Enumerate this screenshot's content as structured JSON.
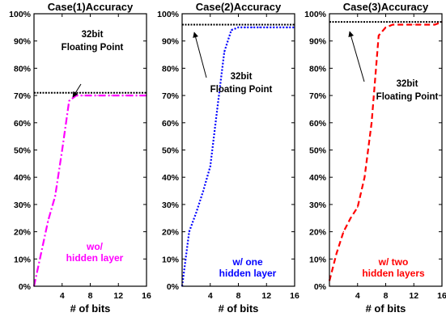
{
  "chart_data": [
    {
      "type": "line",
      "title": "Case(1)Accuracy",
      "xlabel": "# of bits",
      "ylabel": "",
      "xlim": [
        0,
        16
      ],
      "ylim": [
        0,
        100
      ],
      "xticks": [
        4,
        8,
        12,
        16
      ],
      "xtick_labels": [
        "4",
        "8",
        "12",
        "16"
      ],
      "yticks": [
        0,
        10,
        20,
        30,
        40,
        50,
        60,
        70,
        80,
        90,
        100
      ],
      "ytick_labels": [
        "0%",
        "10%",
        "20%",
        "30%",
        "40%",
        "50%",
        "60%",
        "70%",
        "80%",
        "90%",
        "100%"
      ],
      "reference_line": {
        "y": 71,
        "label_lines": [
          "32bit",
          "Floating Point"
        ]
      },
      "annotation_arrow": "Floating Point label points to reference line",
      "series": [
        {
          "label_lines": [
            "wo/",
            "hidden layer"
          ],
          "color": "#ff00ff",
          "style": "dash-dot",
          "x": [
            0,
            1,
            2,
            3,
            4,
            5,
            6,
            7,
            8,
            9,
            10,
            11,
            12,
            13,
            14,
            15,
            16
          ],
          "y": [
            0,
            12,
            24,
            33,
            50,
            68,
            70,
            70,
            70,
            70,
            70,
            70,
            70,
            70,
            70,
            70,
            70
          ]
        }
      ]
    },
    {
      "type": "line",
      "title": "Case(2)Accuracy",
      "xlabel": "# of bits",
      "ylabel": "",
      "xlim": [
        0,
        16
      ],
      "ylim": [
        0,
        100
      ],
      "xticks": [
        4,
        8,
        12,
        16
      ],
      "xtick_labels": [
        "4",
        "8",
        "12",
        "16"
      ],
      "yticks": [
        0,
        10,
        20,
        30,
        40,
        50,
        60,
        70,
        80,
        90,
        100
      ],
      "ytick_labels": [
        "0%",
        "10%",
        "20%",
        "30%",
        "40%",
        "50%",
        "60%",
        "70%",
        "80%",
        "90%",
        "100%"
      ],
      "reference_line": {
        "y": 96,
        "label_lines": [
          "32bit",
          "Floating Point"
        ]
      },
      "annotation_arrow": "Floating Point label points to reference line",
      "series": [
        {
          "label_lines": [
            "w/ one",
            "hidden layer"
          ],
          "color": "#0000ff",
          "style": "dotted",
          "x": [
            0,
            1,
            2,
            3,
            4,
            5,
            6,
            7,
            8,
            9,
            10,
            11,
            12,
            13,
            14,
            15,
            16
          ],
          "y": [
            0,
            20,
            27,
            35,
            44,
            65,
            86,
            94,
            95,
            95,
            95,
            95,
            95,
            95,
            95,
            95,
            95
          ]
        }
      ]
    },
    {
      "type": "line",
      "title": "Case(3)Accuracy",
      "xlabel": "# of bits",
      "ylabel": "",
      "xlim": [
        0,
        16
      ],
      "ylim": [
        0,
        100
      ],
      "xticks": [
        4,
        8,
        12,
        16
      ],
      "xtick_labels": [
        "4",
        "8",
        "12",
        "16"
      ],
      "yticks": [
        0,
        10,
        20,
        30,
        40,
        50,
        60,
        70,
        80,
        90,
        100
      ],
      "ytick_labels": [
        "0%",
        "10%",
        "20%",
        "30%",
        "40%",
        "50%",
        "60%",
        "70%",
        "80%",
        "90%",
        "100%"
      ],
      "reference_line": {
        "y": 97,
        "label_lines": [
          "32bit",
          "Floating Point"
        ]
      },
      "annotation_arrow": "Floating Point label points to reference line",
      "series": [
        {
          "label_lines": [
            "w/ two",
            "hidden layers"
          ],
          "color": "#ff0000",
          "style": "dashed",
          "x": [
            0,
            1,
            2,
            3,
            4,
            5,
            6,
            7,
            8,
            9,
            10,
            11,
            12,
            13,
            14,
            15,
            16
          ],
          "y": [
            2,
            12,
            20,
            25,
            29,
            40,
            60,
            92,
            95,
            96,
            96,
            96,
            96,
            96,
            96,
            96,
            97
          ]
        }
      ]
    }
  ]
}
